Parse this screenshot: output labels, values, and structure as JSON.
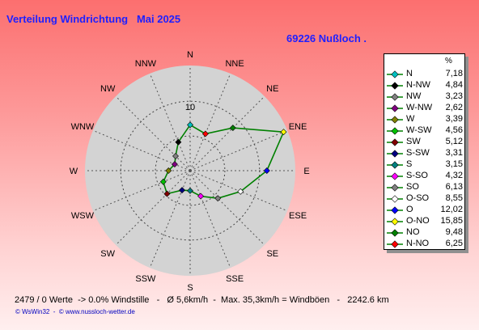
{
  "title": "Verteilung Windrichtung   Mai 2025",
  "location": "69226 Nußloch .",
  "legend": {
    "header": "%",
    "rows": [
      {
        "label": "N",
        "value": "7,18",
        "color": "#00c0c0"
      },
      {
        "label": "N-NW",
        "value": "4,84",
        "color": "#000000"
      },
      {
        "label": "NW",
        "value": "3,23",
        "color": "#808080"
      },
      {
        "label": "W-NW",
        "value": "2,62",
        "color": "#800080"
      },
      {
        "label": "W",
        "value": "3,39",
        "color": "#808000"
      },
      {
        "label": "W-SW",
        "value": "4,56",
        "color": "#00c000"
      },
      {
        "label": "SW",
        "value": "5,12",
        "color": "#800000"
      },
      {
        "label": "S-SW",
        "value": "3,31",
        "color": "#000080"
      },
      {
        "label": "S",
        "value": "3,15",
        "color": "#008080"
      },
      {
        "label": "S-SO",
        "value": "4,32",
        "color": "#ff00ff"
      },
      {
        "label": "SO",
        "value": "6,13",
        "color": "#808080"
      },
      {
        "label": "O-SO",
        "value": "8,55",
        "color": "#ffffff"
      },
      {
        "label": "O",
        "value": "12,02",
        "color": "#0000ff"
      },
      {
        "label": "O-NO",
        "value": "15,85",
        "color": "#ffff00"
      },
      {
        "label": "NO",
        "value": "9,48",
        "color": "#008000"
      },
      {
        "label": "N-NO",
        "value": "6,25",
        "color": "#ff0000"
      }
    ]
  },
  "footer": "2479 / 0 Werte  -> 0.0% Windstille   -   Ø 5,6km/h  -  Max. 35,3km/h = Windböen   -   2242.6 km",
  "credits": "© WsWin32  -  © www.nussloch-wetter.de",
  "chart_data": {
    "type": "radar",
    "title": "Verteilung Windrichtung   Mai 2025",
    "directions": [
      "N",
      "NNE",
      "NE",
      "ENE",
      "E",
      "ESE",
      "SE",
      "SSE",
      "S",
      "SSW",
      "SW",
      "WSW",
      "W",
      "WNW",
      "NW",
      "NNW"
    ],
    "values": [
      7.18,
      6.25,
      9.48,
      15.85,
      12.02,
      8.55,
      6.13,
      4.32,
      3.15,
      3.31,
      5.12,
      4.56,
      3.39,
      2.62,
      3.23,
      4.84
    ],
    "ring_label": "10",
    "rmax": 15.85,
    "line_color": "#008000",
    "background": "#d3d3d3"
  }
}
